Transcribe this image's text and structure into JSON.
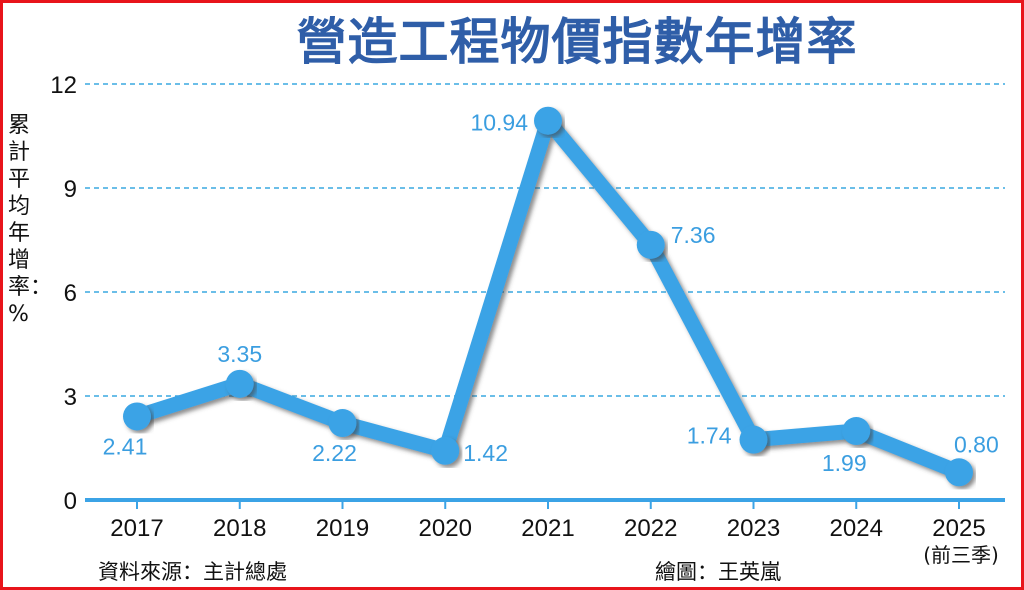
{
  "chart_data": {
    "type": "line",
    "title": "營造工程物價指數年增率",
    "ylabel": "累計平均年增率：%",
    "xlabel": "",
    "categories": [
      "2017",
      "2018",
      "2019",
      "2020",
      "2021",
      "2022",
      "2023",
      "2024",
      "2025"
    ],
    "category_sublabels": {
      "2025": "(前三季)"
    },
    "values": [
      2.41,
      3.35,
      2.22,
      1.42,
      10.94,
      7.36,
      1.74,
      1.99,
      0.8
    ],
    "data_labels": [
      "2.41",
      "3.35",
      "2.22",
      "1.42",
      "10.94",
      "7.36",
      "1.74",
      "1.99",
      "0.80"
    ],
    "ylim": [
      0,
      12
    ],
    "yticks": [
      0,
      3,
      6,
      9,
      12
    ],
    "grid": "horizontal dashed",
    "colors": {
      "line": "#3ba3e6",
      "grid": "#3aa8e0",
      "title": "#2f5ea8",
      "labels": "#3b9ee0",
      "border": "#e8141b"
    }
  },
  "footer": {
    "source": "資料來源：主計總處",
    "credit": "繪圖：王英嵐"
  }
}
